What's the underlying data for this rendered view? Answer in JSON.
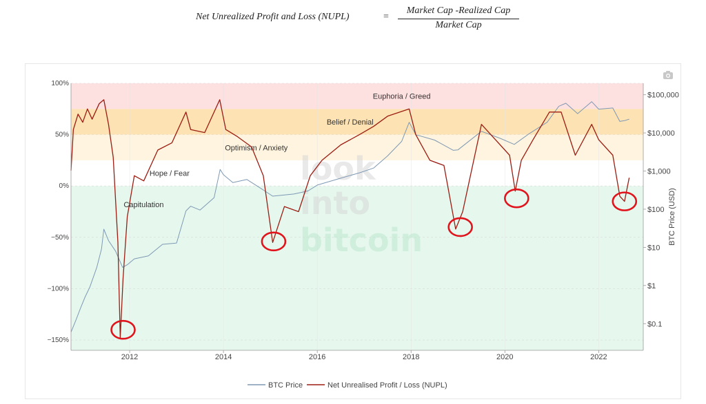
{
  "formula": {
    "lhs": "Net Unrealized Profit and Loss (NUPL)",
    "equals": "=",
    "numerator": "Market Cap -Realized Cap",
    "denominator": "Market Cap"
  },
  "watermark": [
    "look",
    "into",
    "bitcoin"
  ],
  "colors": {
    "euphoria": "#fde0e0",
    "belief": "#fde2b4",
    "optimism": "#fff4df",
    "hope": "#ffffff",
    "capitulation": "#e6f8ee",
    "btc_line": "#7e98b3",
    "nupl_line": "#9b1c12",
    "highlight_circle": "#e0141c"
  },
  "chart_data": {
    "type": "line",
    "title": "",
    "x_range": [
      2010.75,
      2022.95
    ],
    "x_ticks": [
      {
        "value": 2012,
        "label": "2012"
      },
      {
        "value": 2014,
        "label": "2014"
      },
      {
        "value": 2016,
        "label": "2016"
      },
      {
        "value": 2018,
        "label": "2018"
      },
      {
        "value": 2020,
        "label": "2020"
      },
      {
        "value": 2022,
        "label": "2022"
      }
    ],
    "y_left": {
      "range": [
        -1.6,
        1.0
      ],
      "ticks": [
        {
          "value": 1.0,
          "label": "100%"
        },
        {
          "value": 0.5,
          "label": "50%"
        },
        {
          "value": 0.0,
          "label": "0%"
        },
        {
          "value": -0.5,
          "label": "−50%"
        },
        {
          "value": -1.0,
          "label": "−100%"
        },
        {
          "value": -1.5,
          "label": "−150%"
        }
      ]
    },
    "y_right": {
      "label": "BTC Price (USD)",
      "scale": "log",
      "range": [
        0.02,
        200000
      ],
      "ticks": [
        {
          "value": 100000,
          "label": "$100,000"
        },
        {
          "value": 10000,
          "label": "$10,000"
        },
        {
          "value": 1000,
          "label": "$1,000"
        },
        {
          "value": 100,
          "label": "$100"
        },
        {
          "value": 10,
          "label": "$10"
        },
        {
          "value": 1,
          "label": "$1"
        },
        {
          "value": 0.1,
          "label": "$0.1"
        }
      ]
    },
    "zones": [
      {
        "name": "Euphoria / Greed",
        "from": 0.75,
        "to": 1.0,
        "color_key": "euphoria",
        "label_x": 2017.8
      },
      {
        "name": "Belief / Denial",
        "from": 0.5,
        "to": 0.75,
        "color_key": "belief",
        "label_x": 2016.7
      },
      {
        "name": "Optimism / Anxiety",
        "from": 0.25,
        "to": 0.5,
        "color_key": "optimism",
        "label_x": 2014.7
      },
      {
        "name": "Hope / Fear",
        "from": 0.0,
        "to": 0.25,
        "color_key": "hope",
        "label_x": 2012.85
      },
      {
        "name": "Capitulation",
        "from": -1.6,
        "to": 0.0,
        "color_key": "capitulation",
        "label_x": 2012.3
      }
    ],
    "series": [
      {
        "name": "BTC Price",
        "axis": "right",
        "color_key": "btc_line",
        "points": [
          [
            2010.75,
            0.06
          ],
          [
            2010.85,
            0.12
          ],
          [
            2010.95,
            0.25
          ],
          [
            2011.05,
            0.5
          ],
          [
            2011.15,
            0.9
          ],
          [
            2011.3,
            3
          ],
          [
            2011.4,
            9
          ],
          [
            2011.45,
            30
          ],
          [
            2011.55,
            15
          ],
          [
            2011.7,
            8
          ],
          [
            2011.85,
            3
          ],
          [
            2011.95,
            3.5
          ],
          [
            2012.1,
            5
          ],
          [
            2012.4,
            6
          ],
          [
            2012.7,
            12
          ],
          [
            2013.0,
            13
          ],
          [
            2013.2,
            90
          ],
          [
            2013.3,
            120
          ],
          [
            2013.5,
            95
          ],
          [
            2013.8,
            200
          ],
          [
            2013.93,
            1100
          ],
          [
            2014.0,
            800
          ],
          [
            2014.2,
            500
          ],
          [
            2014.5,
            600
          ],
          [
            2014.8,
            350
          ],
          [
            2015.05,
            220
          ],
          [
            2015.5,
            250
          ],
          [
            2015.8,
            300
          ],
          [
            2016.0,
            430
          ],
          [
            2016.5,
            650
          ],
          [
            2016.9,
            900
          ],
          [
            2017.2,
            1200
          ],
          [
            2017.5,
            2500
          ],
          [
            2017.8,
            6000
          ],
          [
            2017.96,
            19000
          ],
          [
            2018.1,
            9000
          ],
          [
            2018.5,
            6500
          ],
          [
            2018.9,
            3500
          ],
          [
            2019.0,
            3600
          ],
          [
            2019.5,
            11000
          ],
          [
            2019.9,
            7200
          ],
          [
            2020.2,
            5000
          ],
          [
            2020.5,
            9200
          ],
          [
            2020.9,
            19000
          ],
          [
            2021.15,
            50000
          ],
          [
            2021.3,
            60000
          ],
          [
            2021.55,
            32000
          ],
          [
            2021.85,
            66000
          ],
          [
            2022.0,
            42000
          ],
          [
            2022.3,
            45000
          ],
          [
            2022.45,
            20000
          ],
          [
            2022.55,
            21000
          ],
          [
            2022.65,
            23000
          ]
        ]
      },
      {
        "name": "Net Unrealised Profit / Loss (NUPL)",
        "axis": "left",
        "color_key": "nupl_line",
        "points": [
          [
            2010.75,
            0.15
          ],
          [
            2010.8,
            0.55
          ],
          [
            2010.9,
            0.7
          ],
          [
            2011.0,
            0.62
          ],
          [
            2011.1,
            0.75
          ],
          [
            2011.2,
            0.65
          ],
          [
            2011.35,
            0.8
          ],
          [
            2011.45,
            0.84
          ],
          [
            2011.55,
            0.6
          ],
          [
            2011.65,
            0.28
          ],
          [
            2011.75,
            -0.55
          ],
          [
            2011.8,
            -1.48
          ],
          [
            2011.86,
            -0.9
          ],
          [
            2011.95,
            -0.3
          ],
          [
            2012.1,
            0.1
          ],
          [
            2012.3,
            0.05
          ],
          [
            2012.6,
            0.35
          ],
          [
            2012.9,
            0.42
          ],
          [
            2013.2,
            0.72
          ],
          [
            2013.3,
            0.55
          ],
          [
            2013.6,
            0.52
          ],
          [
            2013.92,
            0.84
          ],
          [
            2014.05,
            0.55
          ],
          [
            2014.3,
            0.48
          ],
          [
            2014.6,
            0.38
          ],
          [
            2014.85,
            0.1
          ],
          [
            2015.05,
            -0.55
          ],
          [
            2015.3,
            -0.2
          ],
          [
            2015.6,
            -0.25
          ],
          [
            2015.85,
            0.1
          ],
          [
            2016.1,
            0.25
          ],
          [
            2016.5,
            0.4
          ],
          [
            2016.9,
            0.5
          ],
          [
            2017.2,
            0.58
          ],
          [
            2017.5,
            0.68
          ],
          [
            2017.96,
            0.75
          ],
          [
            2018.1,
            0.5
          ],
          [
            2018.4,
            0.25
          ],
          [
            2018.7,
            0.2
          ],
          [
            2018.95,
            -0.42
          ],
          [
            2019.1,
            -0.25
          ],
          [
            2019.5,
            0.6
          ],
          [
            2019.8,
            0.45
          ],
          [
            2020.1,
            0.3
          ],
          [
            2020.22,
            -0.05
          ],
          [
            2020.35,
            0.25
          ],
          [
            2020.6,
            0.45
          ],
          [
            2020.95,
            0.72
          ],
          [
            2021.2,
            0.72
          ],
          [
            2021.5,
            0.3
          ],
          [
            2021.85,
            0.6
          ],
          [
            2022.0,
            0.45
          ],
          [
            2022.3,
            0.3
          ],
          [
            2022.45,
            -0.1
          ],
          [
            2022.55,
            -0.15
          ],
          [
            2022.65,
            0.08
          ]
        ]
      }
    ],
    "highlighted_lows": [
      {
        "x": 2011.86,
        "y": -1.4
      },
      {
        "x": 2015.07,
        "y": -0.54
      },
      {
        "x": 2019.05,
        "y": -0.4
      },
      {
        "x": 2020.25,
        "y": -0.12
      },
      {
        "x": 2022.55,
        "y": -0.15
      }
    ],
    "legend": {
      "placement": "bottom-center",
      "entries": [
        "BTC Price",
        "Net Unrealised Profit / Loss (NUPL)"
      ]
    }
  }
}
